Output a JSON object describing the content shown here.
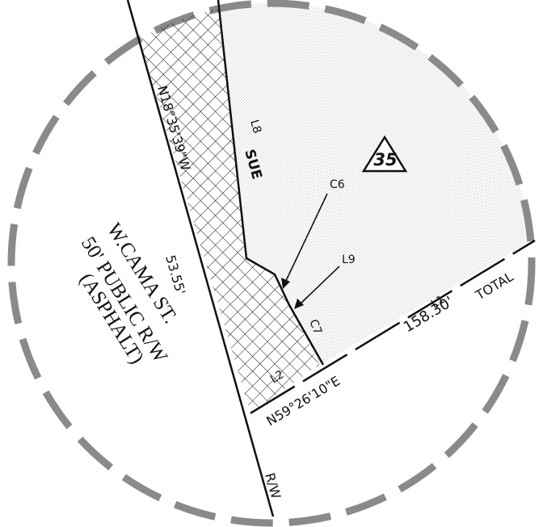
{
  "parcel": {
    "number": "35"
  },
  "labels": {
    "bearing_west": "N18°35'39\"W",
    "dist_west": "53.55'",
    "bearing_south": "N59°26'10\"E",
    "dist_total": "158.30'",
    "total": "TOTAL",
    "sue": "SUE",
    "l8": "L8",
    "c6": "C6",
    "l9": "L9",
    "c7": "C7",
    "l2": "L2",
    "l1": "L1",
    "rw": "R/W"
  },
  "street": {
    "name": "W.CAMA ST.",
    "row": "50' PUBLIC R/W",
    "surface": "(ASPHALT)"
  },
  "colors": {
    "ink": "#111111",
    "dash_ring": "#8a8a8a",
    "stipple": "#9a9a9a"
  }
}
